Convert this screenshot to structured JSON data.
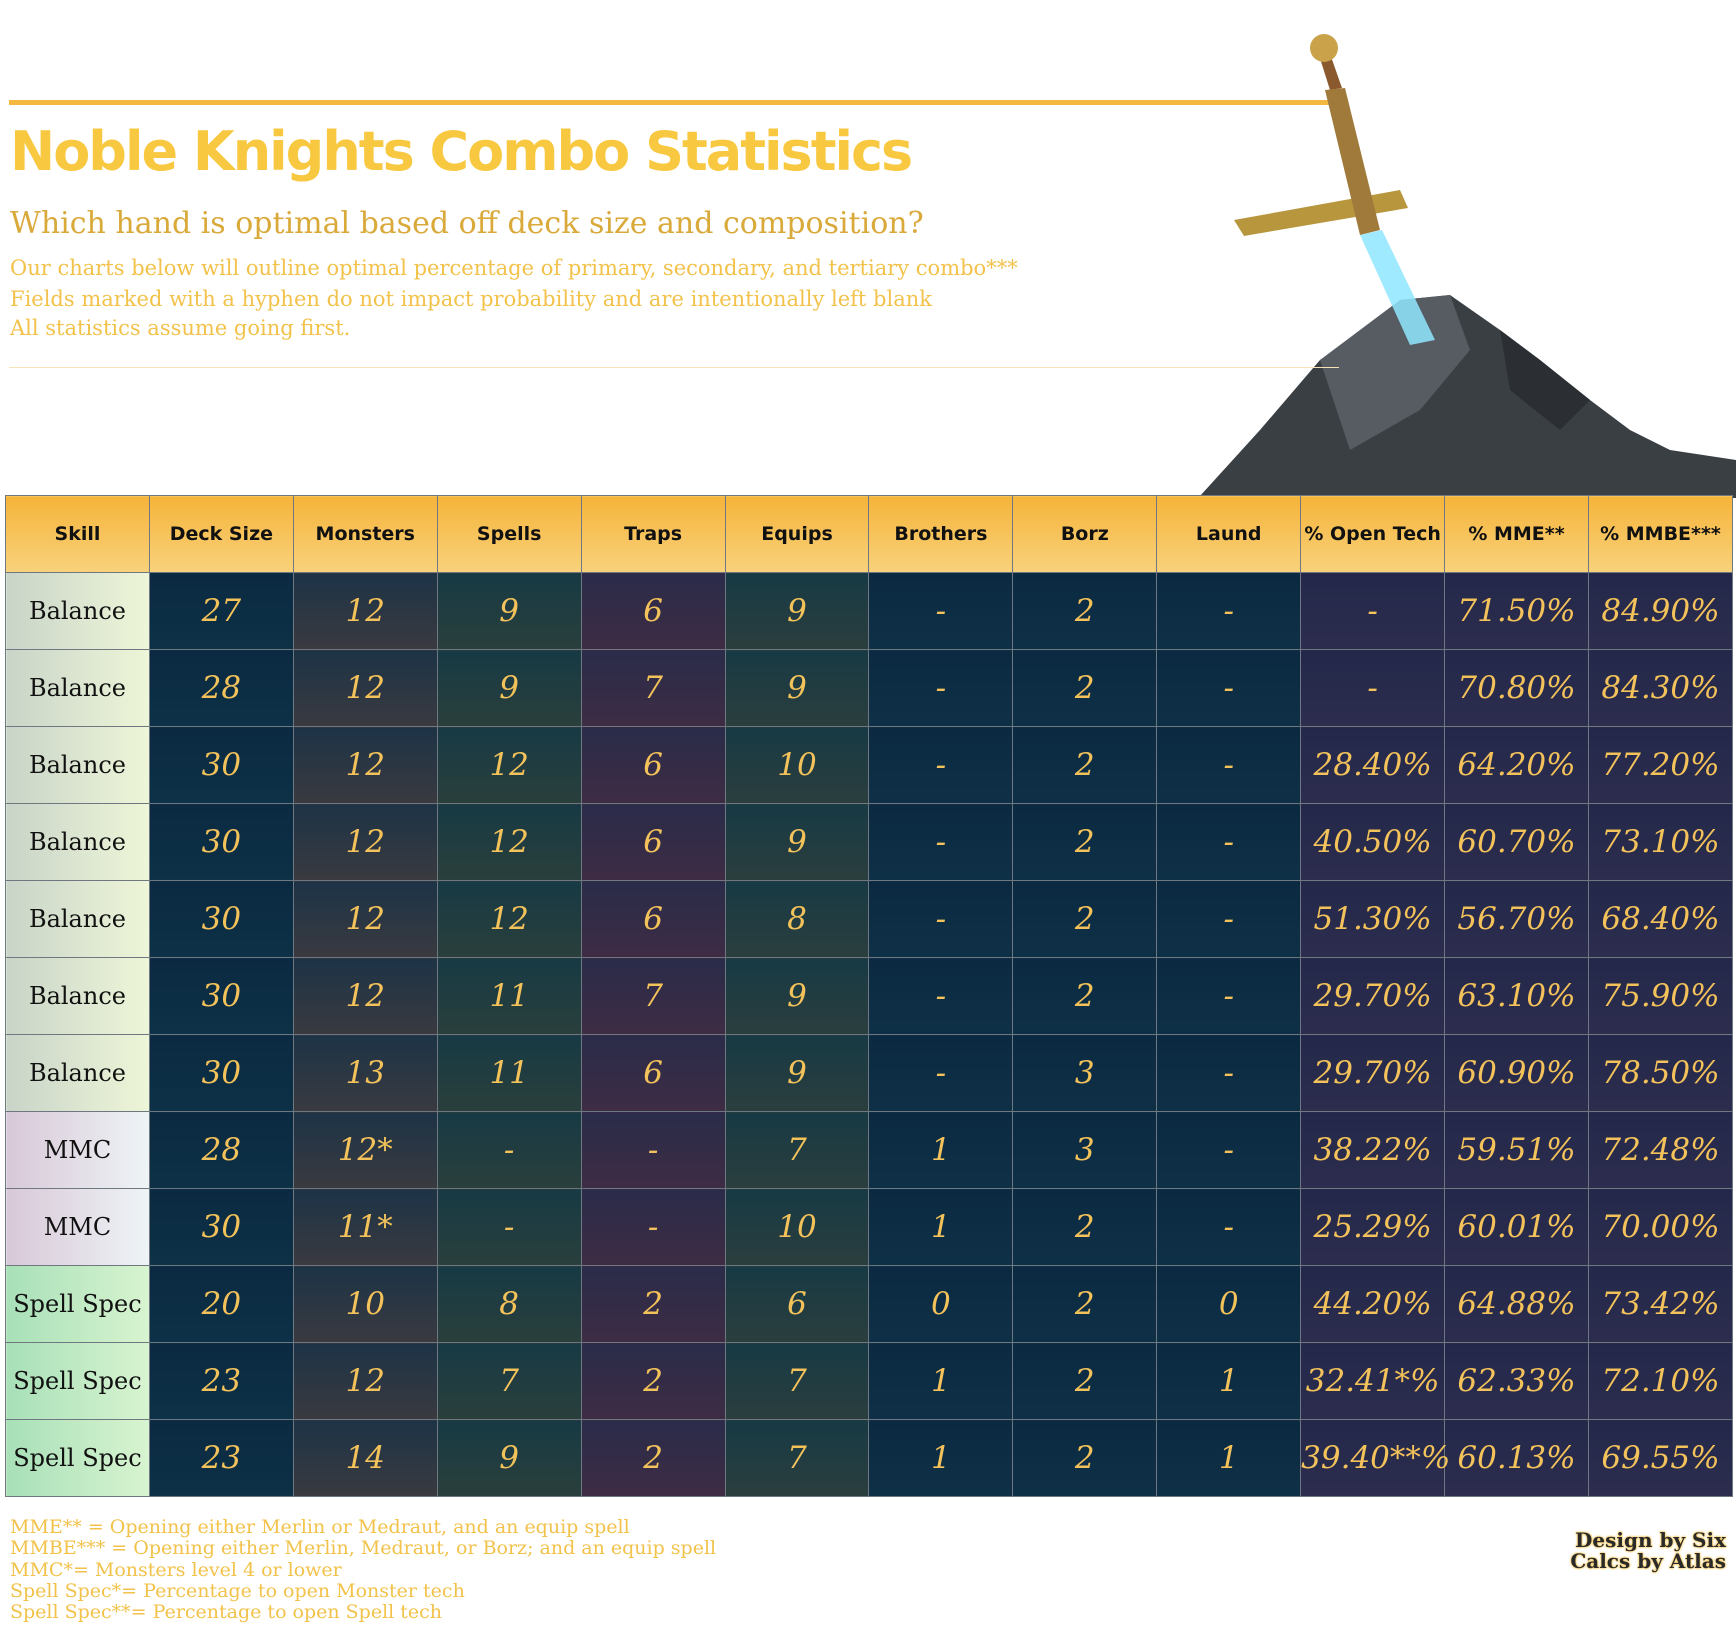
{
  "header": {
    "title": "Noble Knights Combo Statistics",
    "subtitle": "Which hand is optimal based off deck size and composition?",
    "notes": [
      "Our charts below will outline optimal percentage of primary, secondary, and tertiary combo***",
      "Fields marked with a hyphen do not impact probability and are intentionally left blank",
      "All statistics assume going first."
    ]
  },
  "table": {
    "columns": [
      "Skill",
      "Deck Size",
      "Monsters",
      "Spells",
      "Traps",
      "Equips",
      "Brothers",
      "Borz",
      "Laund",
      "% Open Tech",
      "% MME**",
      "% MMBE***"
    ],
    "rows": [
      [
        "Balance",
        "27",
        "12",
        "9",
        "6",
        "9",
        "-",
        "2",
        "-",
        "-",
        "71.50%",
        "84.90%"
      ],
      [
        "Balance",
        "28",
        "12",
        "9",
        "7",
        "9",
        "-",
        "2",
        "-",
        "-",
        "70.80%",
        "84.30%"
      ],
      [
        "Balance",
        "30",
        "12",
        "12",
        "6",
        "10",
        "-",
        "2",
        "-",
        "28.40%",
        "64.20%",
        "77.20%"
      ],
      [
        "Balance",
        "30",
        "12",
        "12",
        "6",
        "9",
        "-",
        "2",
        "-",
        "40.50%",
        "60.70%",
        "73.10%"
      ],
      [
        "Balance",
        "30",
        "12",
        "12",
        "6",
        "8",
        "-",
        "2",
        "-",
        "51.30%",
        "56.70%",
        "68.40%"
      ],
      [
        "Balance",
        "30",
        "12",
        "11",
        "7",
        "9",
        "-",
        "2",
        "-",
        "29.70%",
        "63.10%",
        "75.90%"
      ],
      [
        "Balance",
        "30",
        "13",
        "11",
        "6",
        "9",
        "-",
        "3",
        "-",
        "29.70%",
        "60.90%",
        "78.50%"
      ],
      [
        "MMC",
        "28",
        "12*",
        "-",
        "-",
        "7",
        "1",
        "3",
        "-",
        "38.22%",
        "59.51%",
        "72.48%"
      ],
      [
        "MMC",
        "30",
        "11*",
        "-",
        "-",
        "10",
        "1",
        "2",
        "-",
        "25.29%",
        "60.01%",
        "70.00%"
      ],
      [
        "Spell Spec",
        "20",
        "10",
        "8",
        "2",
        "6",
        "0",
        "2",
        "0",
        "44.20%",
        "64.88%",
        "73.42%"
      ],
      [
        "Spell Spec",
        "23",
        "12",
        "7",
        "2",
        "7",
        "1",
        "2",
        "1",
        "32.41*%",
        "62.33%",
        "72.10%"
      ],
      [
        "Spell Spec",
        "23",
        "14",
        "9",
        "2",
        "7",
        "1",
        "2",
        "1",
        "39.40**%",
        "60.13%",
        "69.55%"
      ]
    ]
  },
  "footer": {
    "notes": [
      "MME** = Opening either Merlin or Medraut, and an equip spell",
      "MMBE*** = Opening either Merlin, Medraut, or Borz; and an equip spell",
      "MMC*= Monsters level 4 or lower",
      "Spell Spec*= Percentage to open Monster tech",
      "Spell Spec**= Percentage to open Spell tech"
    ],
    "credits": [
      "Design by Six",
      "Calcs by Atlas"
    ]
  }
}
